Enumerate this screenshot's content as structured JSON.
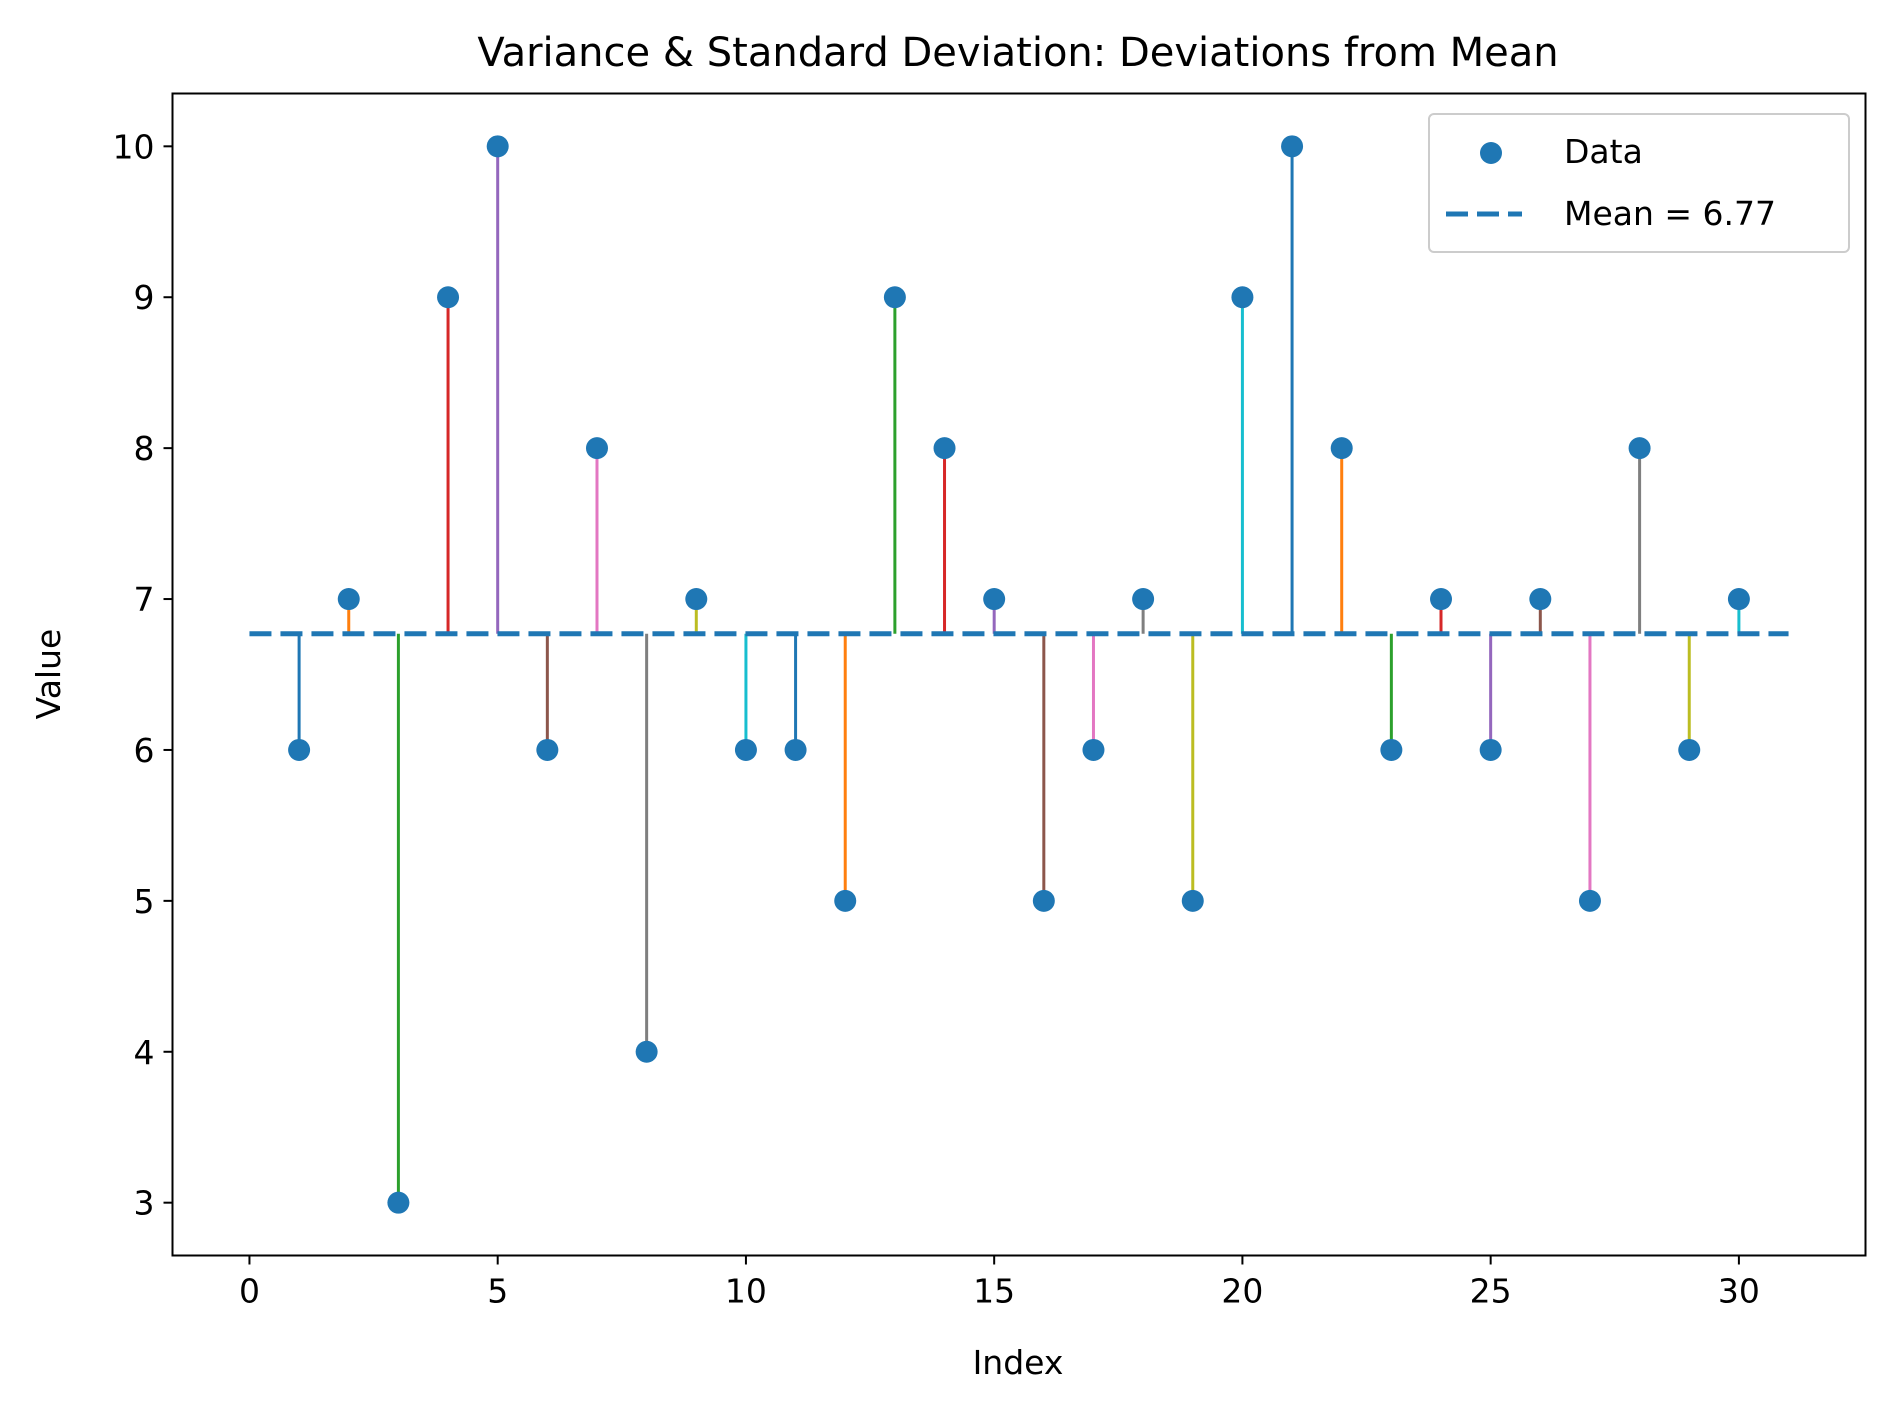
{
  "chart_data": {
    "type": "scatter",
    "title": "Variance & Standard Deviation: Deviations from Mean",
    "xlabel": "Index",
    "ylabel": "Value",
    "xlim": [
      -1.55,
      32.55
    ],
    "ylim": [
      2.65,
      10.35
    ],
    "xticks": [
      0,
      5,
      10,
      15,
      20,
      25,
      30
    ],
    "yticks": [
      3,
      4,
      5,
      6,
      7,
      8,
      9,
      10
    ],
    "grid": false,
    "legend_position": "top-right",
    "mean": 6.77,
    "mean_line_x": [
      0,
      31
    ],
    "series": [
      {
        "name": "Data",
        "kind": "scatter",
        "color": "#1f77b4",
        "x": [
          1,
          2,
          3,
          4,
          5,
          6,
          7,
          8,
          9,
          10,
          11,
          12,
          13,
          14,
          15,
          16,
          17,
          18,
          19,
          20,
          21,
          22,
          23,
          24,
          25,
          26,
          27,
          28,
          29,
          30
        ],
        "y": [
          6,
          7,
          3,
          9,
          10,
          6,
          8,
          4,
          7,
          6,
          6,
          5,
          9,
          8,
          7,
          5,
          6,
          7,
          5,
          9,
          10,
          8,
          6,
          7,
          6,
          7,
          5,
          8,
          6,
          7
        ]
      },
      {
        "name": "Mean = 6.77",
        "kind": "dashed-line",
        "color": "#1f77b4"
      }
    ],
    "deviation_colors": [
      "#1f77b4",
      "#ff7f0e",
      "#2ca02c",
      "#d62728",
      "#9467bd",
      "#8c564b",
      "#e377c2",
      "#7f7f7f",
      "#bcbd22",
      "#17becf"
    ]
  }
}
